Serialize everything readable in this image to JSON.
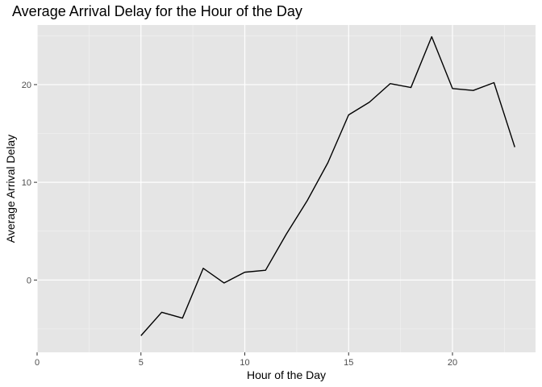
{
  "chart_data": {
    "type": "line",
    "title": "Average Arrival Delay for the Hour of the Day",
    "xlabel": "Hour of the Day",
    "ylabel": "Average Arrival Delay",
    "xlim": [
      0,
      24
    ],
    "ylim": [
      -7.4,
      26.1
    ],
    "x_ticks": [
      0,
      5,
      10,
      15,
      20
    ],
    "x_tick_labels": [
      "0",
      "5",
      "10",
      "15",
      "20"
    ],
    "y_ticks": [
      0,
      10,
      20
    ],
    "y_tick_labels": [
      "0",
      "10",
      "20"
    ],
    "grid": true,
    "legend": "none",
    "series": [
      {
        "color": "#000000",
        "x": [
          5,
          6,
          7,
          8,
          9,
          10,
          11,
          12,
          13,
          14,
          15,
          16,
          17,
          18,
          19,
          20,
          21,
          22,
          23
        ],
        "y": [
          -5.7,
          -3.3,
          -3.9,
          1.2,
          -0.3,
          0.8,
          1.0,
          4.7,
          8.1,
          12.0,
          16.9,
          18.2,
          20.1,
          19.7,
          24.9,
          19.6,
          19.4,
          20.2,
          13.6
        ]
      }
    ],
    "colors": {
      "panel_background": "#e5e5e5",
      "grid_major": "#ffffff",
      "grid_minor": "#f2f2f2",
      "tick_mark": "#333333"
    }
  }
}
